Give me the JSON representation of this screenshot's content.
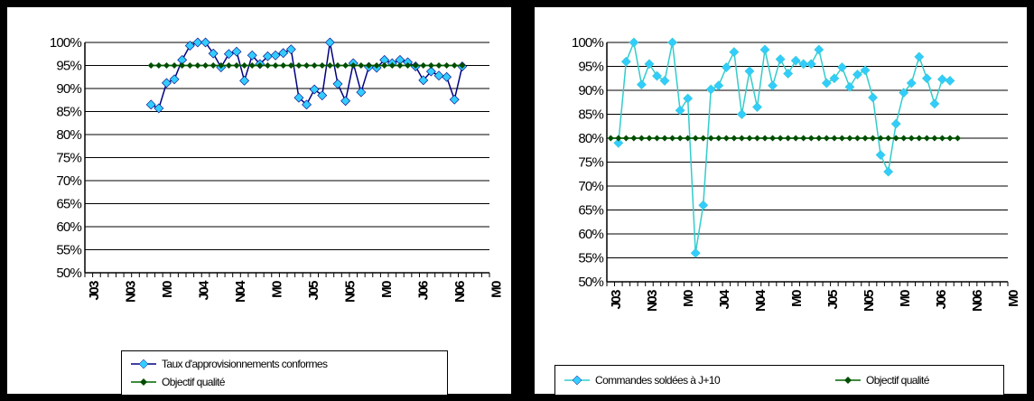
{
  "chart_data": [
    {
      "type": "line",
      "ylim": [
        0.5,
        1.0
      ],
      "y_ticks": [
        "100%",
        "95%",
        "90%",
        "85%",
        "80%",
        "75%",
        "70%",
        "65%",
        "60%",
        "55%",
        "50%"
      ],
      "x_tick_labels": [
        "J03",
        "N03",
        "M0",
        "J04",
        "N04",
        "M0",
        "J05",
        "N05",
        "M0",
        "J06",
        "N06",
        "M0"
      ],
      "grid": true,
      "legend_placement": "bottom",
      "series": [
        {
          "name": "Taux d'approvisionnements conformes",
          "color": "#000080",
          "marker_color": "#33ccff",
          "marker": "diamond",
          "start_index": 8,
          "values": [
            0.865,
            0.857,
            0.912,
            0.92,
            0.962,
            0.993,
            1.0,
            1.0,
            0.976,
            0.946,
            0.975,
            0.98,
            0.917,
            0.972,
            0.953,
            0.97,
            0.972,
            0.977,
            0.985,
            0.88,
            0.865,
            0.898,
            0.885,
            1.0,
            0.91,
            0.873,
            0.955,
            0.892,
            0.947,
            0.945,
            0.962,
            0.955,
            0.962,
            0.957,
            0.948,
            0.918,
            0.937,
            0.928,
            0.925,
            0.876,
            0.948
          ]
        },
        {
          "name": "Objectif qualité",
          "color": "#006400",
          "marker_color": "#004d00",
          "marker": "diamond",
          "start_index": 8,
          "values": [
            0.95,
            0.95,
            0.95,
            0.95,
            0.95,
            0.95,
            0.95,
            0.95,
            0.95,
            0.95,
            0.95,
            0.95,
            0.95,
            0.95,
            0.95,
            0.95,
            0.95,
            0.95,
            0.95,
            0.95,
            0.95,
            0.95,
            0.95,
            0.95,
            0.95,
            0.95,
            0.95,
            0.95,
            0.95,
            0.95,
            0.95,
            0.95,
            0.95,
            0.95,
            0.95,
            0.95,
            0.95,
            0.95,
            0.95,
            0.95,
            0.95
          ]
        }
      ]
    },
    {
      "type": "line",
      "ylim": [
        0.5,
        1.0
      ],
      "y_ticks": [
        "100%",
        "95%",
        "90%",
        "85%",
        "80%",
        "75%",
        "70%",
        "65%",
        "60%",
        "55%",
        "50%"
      ],
      "x_tick_labels": [
        "J03",
        "N03",
        "M0",
        "J04",
        "N04",
        "M0",
        "J05",
        "N05",
        "M0",
        "J06",
        "N06",
        "M0"
      ],
      "grid": true,
      "legend_placement": "bottom",
      "series": [
        {
          "name": "Commandes soldées à J+10",
          "color": "#33cccc",
          "marker_color": "#33ccff",
          "marker": "diamond",
          "start_index": 1,
          "values": [
            0.79,
            0.96,
            1.0,
            0.912,
            0.955,
            0.93,
            0.92,
            1.0,
            0.858,
            0.883,
            0.56,
            0.66,
            0.902,
            0.91,
            0.948,
            0.98,
            0.85,
            0.94,
            0.865,
            0.985,
            0.91,
            0.965,
            0.935,
            0.962,
            0.955,
            0.955,
            0.985,
            0.915,
            0.925,
            0.948,
            0.907,
            0.933,
            0.942,
            0.885,
            0.765,
            0.73,
            0.83,
            0.895,
            0.915,
            0.97,
            0.925,
            0.872,
            0.923,
            0.92
          ]
        },
        {
          "name": "Objectif qualité",
          "color": "#006400",
          "marker_color": "#004d00",
          "marker": "diamond",
          "start_index": 0,
          "values": [
            0.8,
            0.8,
            0.8,
            0.8,
            0.8,
            0.8,
            0.8,
            0.8,
            0.8,
            0.8,
            0.8,
            0.8,
            0.8,
            0.8,
            0.8,
            0.8,
            0.8,
            0.8,
            0.8,
            0.8,
            0.8,
            0.8,
            0.8,
            0.8,
            0.8,
            0.8,
            0.8,
            0.8,
            0.8,
            0.8,
            0.8,
            0.8,
            0.8,
            0.8,
            0.8,
            0.8,
            0.8,
            0.8,
            0.8,
            0.8,
            0.8,
            0.8,
            0.8,
            0.8,
            0.8,
            0.8
          ]
        }
      ]
    }
  ]
}
